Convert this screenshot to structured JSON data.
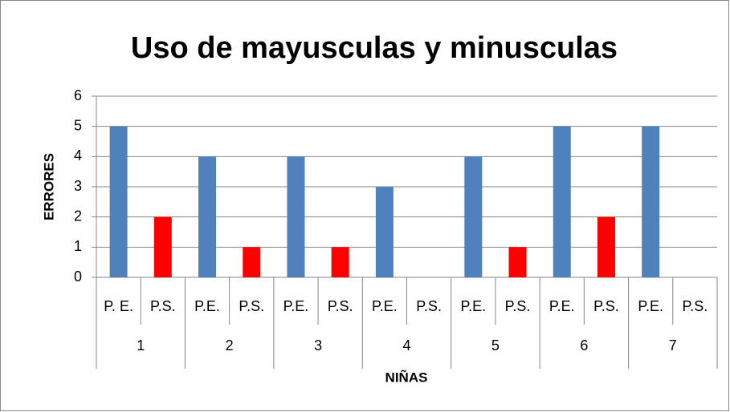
{
  "chart_data": {
    "type": "bar",
    "title": "Uso de mayusculas y minusculas",
    "categories": [
      "P. E.",
      "P.S.",
      "P.E.",
      "P.S.",
      "P.E.",
      "P.S.",
      "P.E.",
      "P.S.",
      "P.E.",
      "P.S.",
      "P.E.",
      "P.S.",
      "P.E.",
      "P.S."
    ],
    "groups": [
      "1",
      "2",
      "3",
      "4",
      "5",
      "6",
      "7"
    ],
    "values": [
      5,
      2,
      4,
      1,
      4,
      1,
      3,
      0,
      4,
      1,
      5,
      2,
      5,
      0
    ],
    "colors": [
      "#4f81bd",
      "#ff0000",
      "#4f81bd",
      "#ff0000",
      "#4f81bd",
      "#ff0000",
      "#4f81bd",
      "#ff0000",
      "#4f81bd",
      "#ff0000",
      "#4f81bd",
      "#ff0000",
      "#4f81bd",
      "#ff0000"
    ],
    "x_label": "NIÑAS",
    "y_label": "ERRORES",
    "ylim": [
      0,
      6
    ],
    "yticks": [
      0,
      1,
      2,
      3,
      4,
      5,
      6
    ],
    "grid": true
  }
}
